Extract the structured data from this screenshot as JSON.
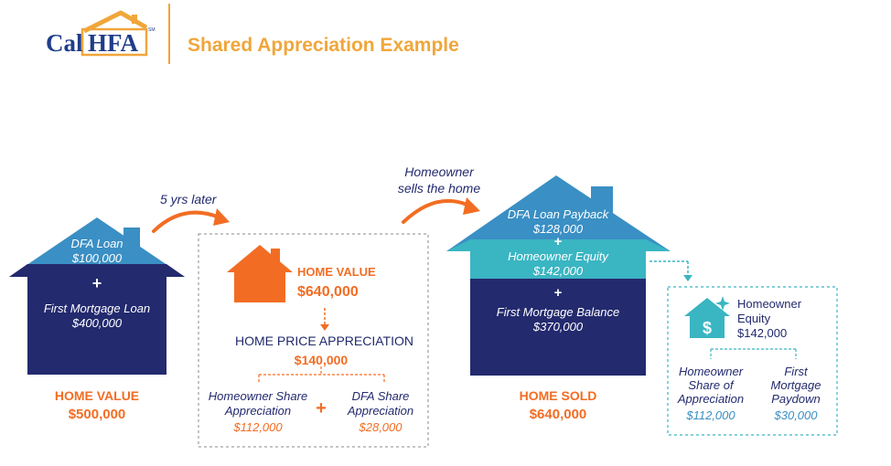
{
  "logo": {
    "text_left": "Cal",
    "text_right": "HFA",
    "tm": "SM"
  },
  "header": {
    "title": "Shared Appreciation Example"
  },
  "arrows": {
    "years_later": "5 yrs later",
    "sells_line1": "Homeowner",
    "sells_line2": "sells the home"
  },
  "house1": {
    "dfa_loan_label": "DFA Loan",
    "dfa_loan_value": "$100,000",
    "plus": "+",
    "first_mortgage_label": "First Mortgage Loan",
    "first_mortgage_value": "$400,000",
    "caption_label": "HOME VALUE",
    "caption_value": "$500,000"
  },
  "middle": {
    "home_value_label": "HOME VALUE",
    "home_value_value": "$640,000",
    "appreciation_label": "HOME PRICE APPRECIATION",
    "appreciation_value": "$140,000",
    "homeowner_share_line1": "Homeowner Share",
    "homeowner_share_line2": "Appreciation",
    "homeowner_share_value": "$112,000",
    "plus": "+",
    "dfa_share_line1": "DFA Share",
    "dfa_share_line2": "Appreciation",
    "dfa_share_value": "$28,000"
  },
  "house2": {
    "dfa_payback_label": "DFA Loan Payback",
    "dfa_payback_value": "$128,000",
    "plus1": "+",
    "equity_label": "Homeowner Equity",
    "equity_value": "$142,000",
    "plus2": "+",
    "balance_label": "First Mortgage Balance",
    "balance_value": "$370,000",
    "caption_label": "HOME SOLD",
    "caption_value": "$640,000"
  },
  "equity_box": {
    "title_line1": "Homeowner",
    "title_line2": "Equity",
    "title_value": "$142,000",
    "share_line1": "Homeowner",
    "share_line2": "Share of",
    "share_line3": "Appreciation",
    "share_value": "$112,000",
    "paydown_line1": "First",
    "paydown_line2": "Mortgage",
    "paydown_line3": "Paydown",
    "paydown_value": "$30,000"
  },
  "colors": {
    "navy": "#232a6e",
    "light_blue": "#3a8fc4",
    "teal": "#3ab5c2",
    "orange": "#f26d23"
  }
}
